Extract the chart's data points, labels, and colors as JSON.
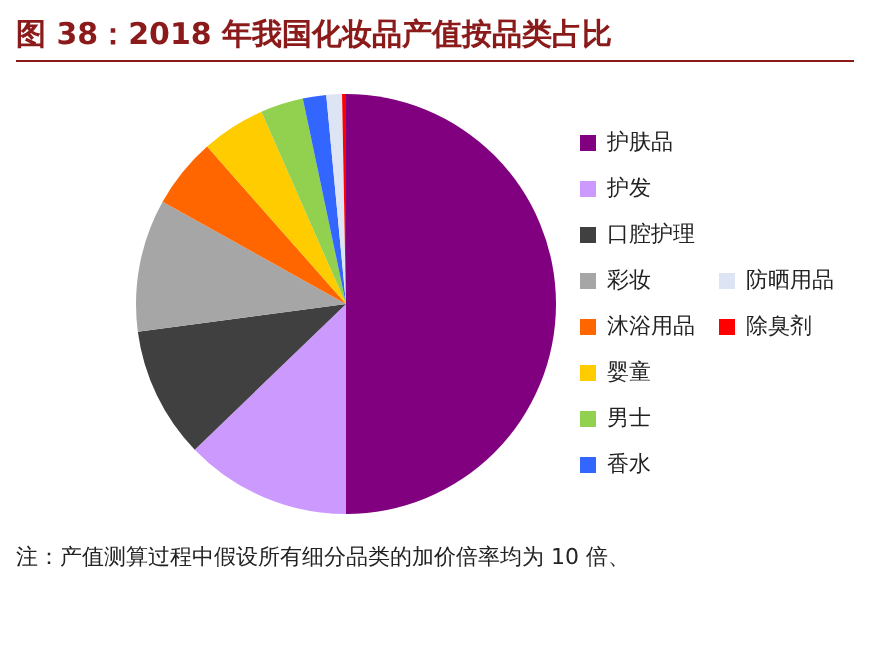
{
  "chart_data": {
    "type": "pie",
    "title": "图 38：2018 年我国化妆品产值按品类占比",
    "categories": [
      "护肤品",
      "护发",
      "口腔护理",
      "彩妆",
      "沐浴用品",
      "婴童",
      "男士",
      "香水",
      "防晒用品",
      "除臭剂"
    ],
    "values": [
      50,
      12.8,
      10.1,
      10.2,
      5.4,
      4.9,
      3.3,
      1.8,
      1.2,
      0.3
    ],
    "colors": [
      "#800080",
      "#cc99ff",
      "#404040",
      "#a6a6a6",
      "#ff6600",
      "#ffcc00",
      "#92d050",
      "#3366ff",
      "#dde4f4",
      "#ff0000"
    ],
    "legend": "right",
    "annotations": [
      "注：产值测算过程中假设所有细分品类的加价倍率均为 10 倍、"
    ]
  }
}
